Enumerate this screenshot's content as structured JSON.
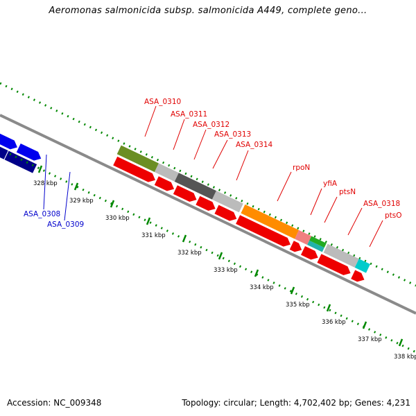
{
  "header": {
    "title": "Aeromonas salmonicida subsp. salmonicida A449, complete geno..."
  },
  "footer": {
    "accession": "Accession: NC_009348",
    "summary": "Topology: circular; Length: 4,702,402 bp; Genes: 4,231"
  },
  "scale_ticks": [
    "328 kbp",
    "329 kbp",
    "330 kbp",
    "331 kbp",
    "332 kbp",
    "333 kbp",
    "334 kbp",
    "335 kbp",
    "336 kbp",
    "337 kbp",
    "338 kbp"
  ],
  "gene_labels": {
    "left": [
      "ASA_0308",
      "ASA_0309"
    ],
    "right": [
      "ASA_0310",
      "ASA_0311",
      "ASA_0312",
      "ASA_0313",
      "ASA_0314",
      "rpoN",
      "yfiA",
      "ptsN",
      "ASA_0318",
      "ptsO"
    ]
  },
  "colors": {
    "label_red": "#e00000",
    "label_blue": "#0000cc",
    "backbone": "#888888",
    "tick_green": "#008800",
    "cds_red": "#ee0000",
    "gene_blue": "#0000ee",
    "gene_navy": "#000088"
  }
}
